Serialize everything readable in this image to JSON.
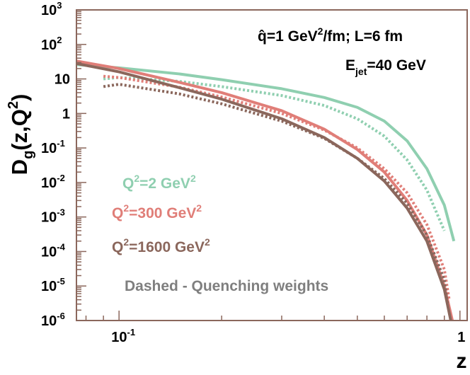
{
  "chart_data": {
    "type": "line",
    "title": "",
    "xlabel": "z",
    "ylabel": "D_g(z,Q^2)",
    "x_scale": "log",
    "y_scale": "log",
    "xlim": [
      0.075,
      1.05
    ],
    "ylim": [
      1e-06,
      1000
    ],
    "x_ticks": [
      {
        "value": 0.1,
        "base": "10",
        "exp": "-1"
      },
      {
        "value": 1,
        "base": "1",
        "exp": ""
      }
    ],
    "y_ticks": [
      {
        "value": 1000,
        "base": "10",
        "exp": "3"
      },
      {
        "value": 100,
        "base": "10",
        "exp": "2"
      },
      {
        "value": 10,
        "base": "10",
        "exp": ""
      },
      {
        "value": 1,
        "base": "1",
        "exp": ""
      },
      {
        "value": 0.1,
        "base": "10",
        "exp": "-1"
      },
      {
        "value": 0.01,
        "base": "10",
        "exp": "-2"
      },
      {
        "value": 0.001,
        "base": "10",
        "exp": "-3"
      },
      {
        "value": 0.0001,
        "base": "10",
        "exp": "-4"
      },
      {
        "value": 1e-05,
        "base": "10",
        "exp": "-5"
      },
      {
        "value": 1e-06,
        "base": "10",
        "exp": "-6"
      }
    ],
    "grid": false,
    "series": [
      {
        "name": "Q^2=2 GeV^2",
        "style": "solid",
        "color": "#8fcfb0",
        "points": [
          [
            0.075,
            26
          ],
          [
            0.1,
            21
          ],
          [
            0.15,
            14
          ],
          [
            0.2,
            9.5
          ],
          [
            0.3,
            5.2
          ],
          [
            0.4,
            2.9
          ],
          [
            0.5,
            1.5
          ],
          [
            0.6,
            0.6
          ],
          [
            0.7,
            0.16
          ],
          [
            0.8,
            0.025
          ],
          [
            0.9,
            0.0022
          ],
          [
            0.96,
            0.0002
          ]
        ]
      },
      {
        "name": "Q^2=2 GeV^2 (quenching weights)",
        "style": "dashed",
        "color": "#8fcfb0",
        "points": [
          [
            0.09,
            10
          ],
          [
            0.1,
            11
          ],
          [
            0.15,
            8.5
          ],
          [
            0.2,
            6
          ],
          [
            0.3,
            3.3
          ],
          [
            0.4,
            1.7
          ],
          [
            0.5,
            0.7
          ],
          [
            0.6,
            0.22
          ],
          [
            0.7,
            0.045
          ],
          [
            0.8,
            0.006
          ],
          [
            0.9,
            0.0004
          ]
        ]
      },
      {
        "name": "Q^2=300 GeV^2",
        "style": "solid",
        "color": "#e07e78",
        "points": [
          [
            0.075,
            33
          ],
          [
            0.1,
            20
          ],
          [
            0.15,
            8
          ],
          [
            0.2,
            4
          ],
          [
            0.3,
            1.2
          ],
          [
            0.4,
            0.35
          ],
          [
            0.5,
            0.09
          ],
          [
            0.6,
            0.02
          ],
          [
            0.7,
            0.003
          ],
          [
            0.8,
            0.0003
          ],
          [
            0.9,
            1e-05
          ],
          [
            0.95,
            1e-06
          ]
        ]
      },
      {
        "name": "Q^2=300 GeV^2 (quenching weights)",
        "style": "dashed",
        "color": "#e07e78",
        "points": [
          [
            0.09,
            12
          ],
          [
            0.1,
            11
          ],
          [
            0.15,
            5.8
          ],
          [
            0.2,
            3
          ],
          [
            0.3,
            1
          ],
          [
            0.4,
            0.33
          ],
          [
            0.5,
            0.1
          ],
          [
            0.6,
            0.025
          ],
          [
            0.7,
            0.005
          ],
          [
            0.8,
            0.0006
          ],
          [
            0.9,
            3e-05
          ],
          [
            0.93,
            4e-06
          ]
        ]
      },
      {
        "name": "Q^2=1600 GeV^2",
        "style": "solid",
        "color": "#8b675c",
        "points": [
          [
            0.075,
            28
          ],
          [
            0.1,
            16
          ],
          [
            0.15,
            5.6
          ],
          [
            0.2,
            2.6
          ],
          [
            0.3,
            0.7
          ],
          [
            0.4,
            0.2
          ],
          [
            0.5,
            0.05
          ],
          [
            0.6,
            0.011
          ],
          [
            0.7,
            0.0018
          ],
          [
            0.8,
            0.0002
          ],
          [
            0.9,
            8e-06
          ],
          [
            0.94,
            1e-06
          ]
        ]
      },
      {
        "name": "Q^2=1600 GeV^2 (quenching weights)",
        "style": "dashed",
        "color": "#8b675c",
        "points": [
          [
            0.09,
            6
          ],
          [
            0.1,
            7
          ],
          [
            0.15,
            3.7
          ],
          [
            0.2,
            1.9
          ],
          [
            0.3,
            0.6
          ],
          [
            0.4,
            0.19
          ],
          [
            0.5,
            0.05
          ],
          [
            0.6,
            0.013
          ],
          [
            0.7,
            0.0025
          ],
          [
            0.8,
            0.0003
          ],
          [
            0.9,
            1.5e-05
          ],
          [
            0.92,
            3e-06
          ]
        ]
      }
    ]
  },
  "annotations": {
    "qhat": {
      "prefix": "q̂=1 GeV",
      "sup": "2",
      "suffix": "/fm; L=6 fm"
    },
    "ejet": {
      "main": "E",
      "sub": "jet",
      "suffix": "=40 GeV"
    },
    "legend": [
      {
        "prefix": "Q",
        "sup1": "2",
        "middle": "=2 GeV",
        "sup2": "2",
        "color": "#8fcfb0"
      },
      {
        "prefix": "Q",
        "sup1": "2",
        "middle": "=300 GeV",
        "sup2": "2",
        "color": "#e07e78"
      },
      {
        "prefix": "Q",
        "sup1": "2",
        "middle": "=1600 GeV",
        "sup2": "2",
        "color": "#8b675c"
      }
    ],
    "dashed_note": "Dashed - Quenching weights",
    "dashed_note_color": "#7f7f7f"
  },
  "axis_text": {
    "y_main": "D",
    "y_sub": "g",
    "y_mid": "(z,Q",
    "y_sup": "2",
    "y_end": ")",
    "x_main": "z"
  },
  "colors": {
    "frame": "#8b675c"
  }
}
